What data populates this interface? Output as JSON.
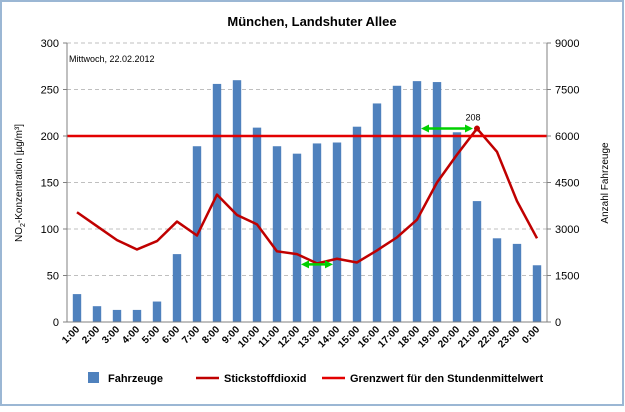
{
  "chart_data": {
    "type": "bar",
    "title": "München, Landshuter Allee",
    "annotation_date": "Mittwoch, 22.02.2012",
    "ylabel_left": "NO2-Konzentration [µg/m³]",
    "ylabel_right": "Anzahl Fahrzeuge",
    "xlabel": "",
    "ylim_left": [
      0,
      300
    ],
    "ylim_right": [
      0,
      9000
    ],
    "yticks_left": [
      0,
      50,
      100,
      150,
      200,
      250,
      300
    ],
    "yticks_right": [
      0,
      1500,
      3000,
      4500,
      6000,
      7500,
      9000
    ],
    "grid": true,
    "legend_position": "bottom",
    "categories": [
      "1:00",
      "2:00",
      "3:00",
      "4:00",
      "5:00",
      "6:00",
      "7:00",
      "8:00",
      "9:00",
      "10:00",
      "11:00",
      "12:00",
      "13:00",
      "14:00",
      "15:00",
      "16:00",
      "17:00",
      "18:00",
      "19:00",
      "20:00",
      "21:00",
      "22:00",
      "23:00",
      "0:00"
    ],
    "series": [
      {
        "name": "Fahrzeuge",
        "type": "bar",
        "axis": "right",
        "color": "#4F81BD",
        "values": [
          900,
          510,
          390,
          390,
          660,
          2190,
          5670,
          7680,
          7800,
          6270,
          5670,
          5430,
          5760,
          5790,
          6300,
          7050,
          7620,
          7770,
          7740,
          6120,
          3900,
          2700,
          2520,
          1830
        ]
      },
      {
        "name": "Stickstoffdioxid",
        "type": "line",
        "axis": "left",
        "color": "#C00000",
        "values": [
          118,
          103,
          88,
          78,
          87,
          108,
          93,
          137,
          115,
          105,
          76,
          73,
          63,
          68,
          64,
          77,
          91,
          110,
          150,
          180,
          208,
          183,
          130,
          90
        ]
      },
      {
        "name": "Grenzwert für den Stundenmittelwert",
        "type": "line",
        "axis": "left",
        "color": "#E30000",
        "values": [
          200,
          200,
          200,
          200,
          200,
          200,
          200,
          200,
          200,
          200,
          200,
          200,
          200,
          200,
          200,
          200,
          200,
          200,
          200,
          200,
          200,
          200,
          200,
          200
        ]
      }
    ],
    "peak_label": "208",
    "peak_category": "21:00",
    "green_arrows": [
      {
        "from": "18:00",
        "to": "21:00",
        "y": 208,
        "color": "#00D000"
      },
      {
        "from": "12:00",
        "to": "14:00",
        "y": 62,
        "color": "#00D000"
      }
    ]
  }
}
